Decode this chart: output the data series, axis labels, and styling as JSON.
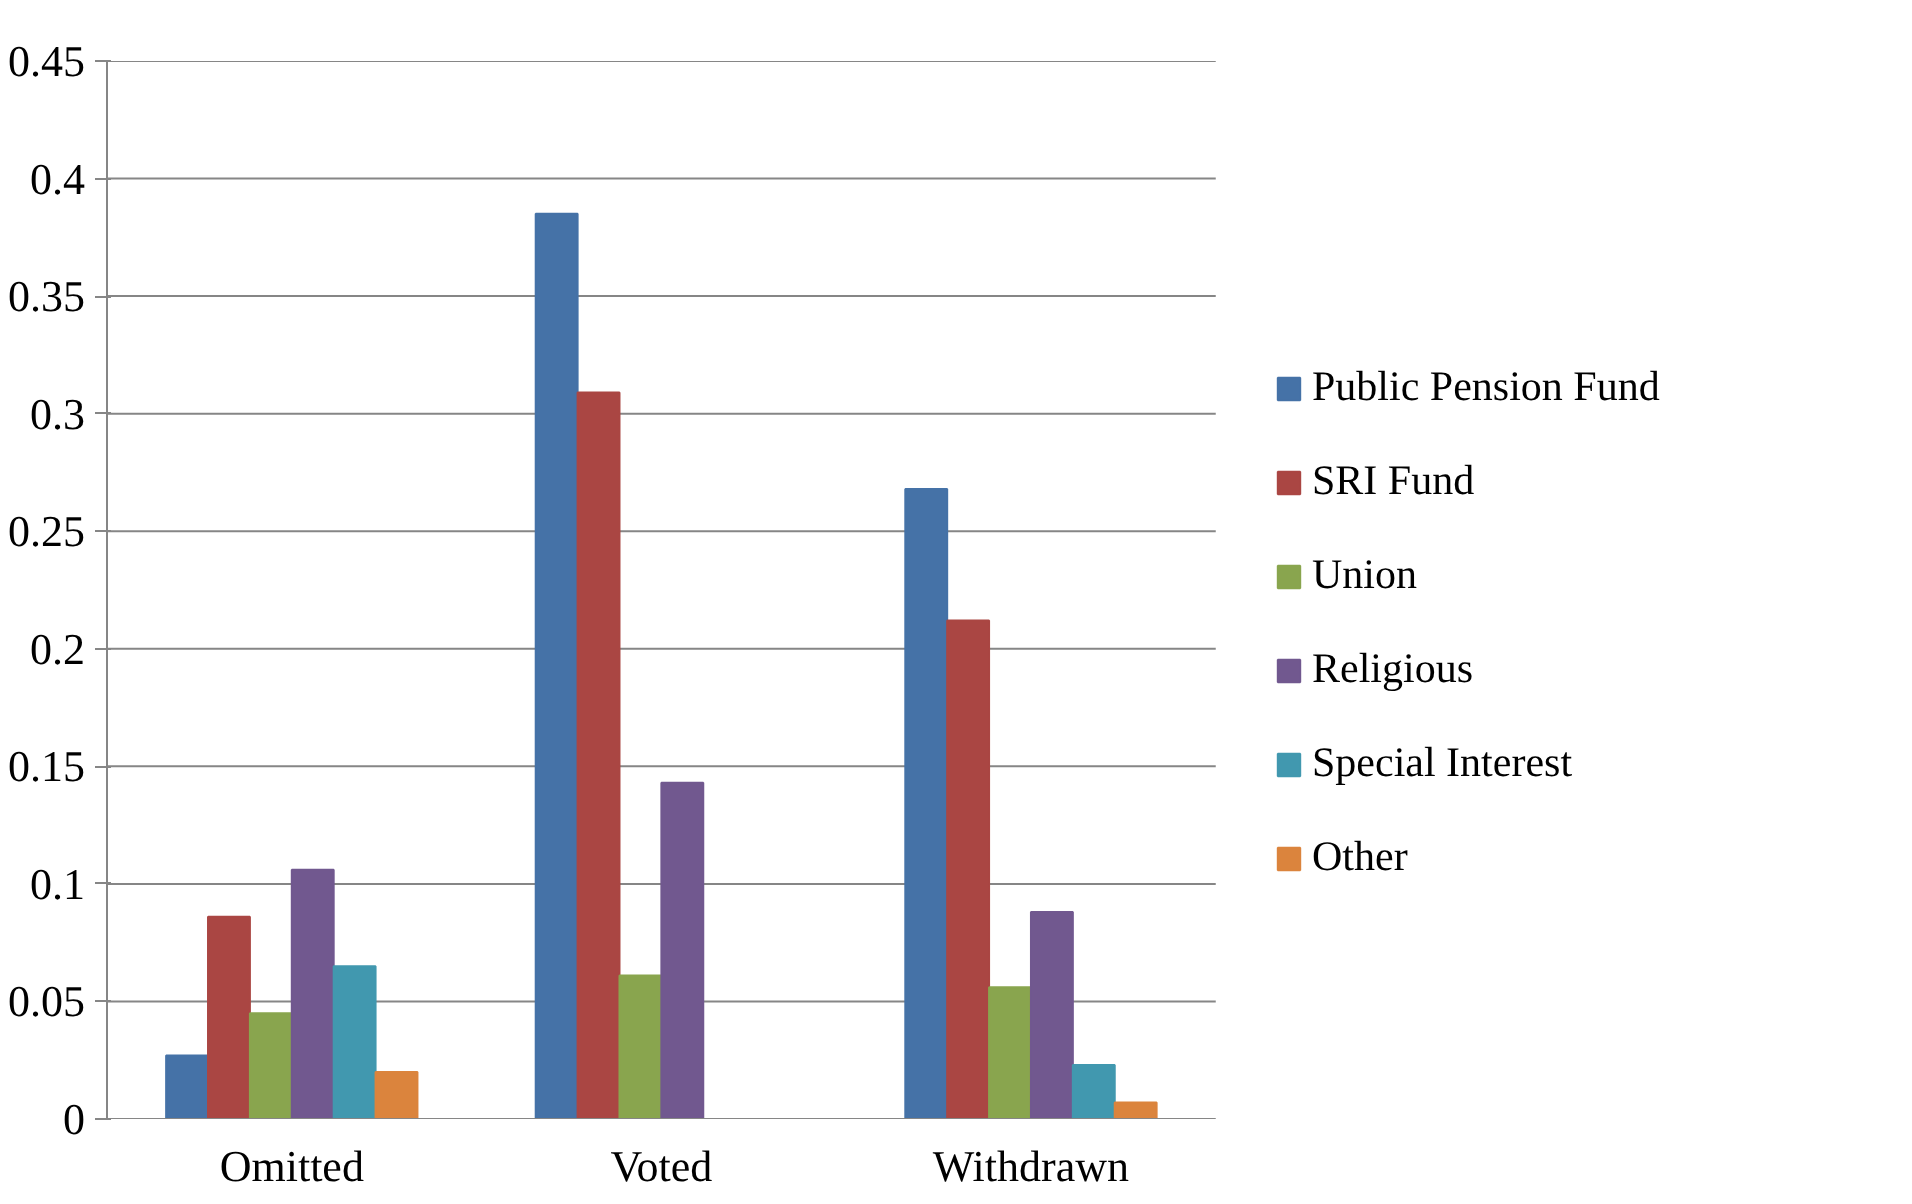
{
  "chart_data": {
    "type": "bar",
    "categories": [
      "Omitted",
      "Voted",
      "Withdrawn"
    ],
    "series": [
      {
        "name": "Public Pension Fund",
        "color": "#4572a7",
        "values": [
          0.027,
          0.385,
          0.268
        ]
      },
      {
        "name": "SRI Fund",
        "color": "#aa4643",
        "values": [
          0.086,
          0.309,
          0.212
        ]
      },
      {
        "name": "Union",
        "color": "#89a54e",
        "values": [
          0.045,
          0.061,
          0.056
        ]
      },
      {
        "name": "Religious",
        "color": "#71588f",
        "values": [
          0.106,
          0.143,
          0.088
        ]
      },
      {
        "name": "Special Interest",
        "color": "#4198af",
        "values": [
          0.065,
          0,
          0.023
        ]
      },
      {
        "name": "Other",
        "color": "#db843d",
        "values": [
          0.02,
          0,
          0.007
        ]
      }
    ],
    "ylim": [
      0,
      0.45
    ],
    "yticks": [
      0,
      0.05,
      0.1,
      0.15,
      0.2,
      0.25,
      0.3,
      0.35,
      0.4,
      0.45
    ],
    "grid": "y",
    "legend": "right"
  }
}
